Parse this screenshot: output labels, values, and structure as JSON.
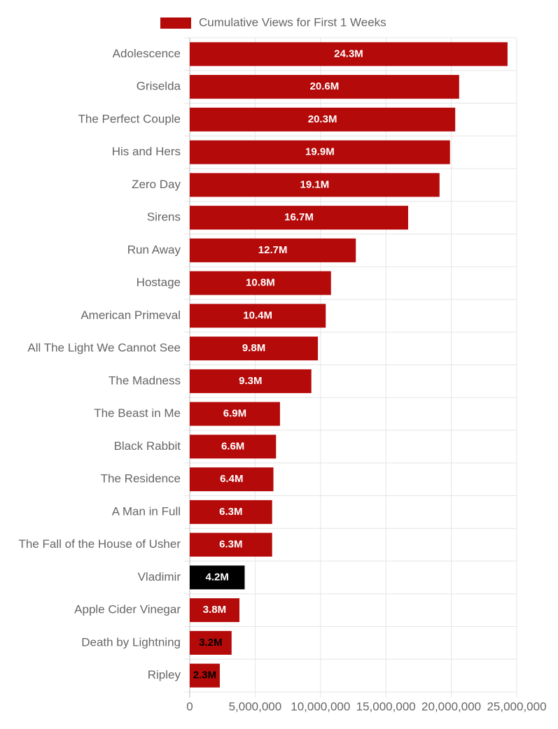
{
  "chart_data": {
    "type": "hbar",
    "categories": [
      "Adolescence",
      "Griselda",
      "The Perfect Couple",
      "His and Hers",
      "Zero Day",
      "Sirens",
      "Run Away",
      "Hostage",
      "American Primeval",
      "All The Light We Cannot See",
      "The Madness",
      "The Beast in Me",
      "Black Rabbit",
      "The Residence",
      "A Man in Full",
      "The Fall of the House of Usher",
      "Vladimir",
      "Apple Cider Vinegar",
      "Death by Lightning",
      "Ripley"
    ],
    "series": [
      {
        "name": "Cumulative Views for First 1 Weeks",
        "color": "#b50a0a",
        "values": [
          24300000,
          20600000,
          20300000,
          19900000,
          19100000,
          16700000,
          12700000,
          10800000,
          10400000,
          9800000,
          9300000,
          6900000,
          6600000,
          6400000,
          6300000,
          6300000,
          4200000,
          3800000,
          3200000,
          2300000
        ],
        "value_labels": [
          "24.3M",
          "20.6M",
          "20.3M",
          "19.9M",
          "19.1M",
          "16.7M",
          "12.7M",
          "10.8M",
          "10.4M",
          "9.8M",
          "9.3M",
          "6.9M",
          "6.6M",
          "6.4M",
          "6.3M",
          "6.3M",
          "4.2M",
          "3.8M",
          "3.2M",
          "2.3M"
        ],
        "bar_colors": [
          "#b50a0a",
          "#b50a0a",
          "#b50a0a",
          "#b50a0a",
          "#b50a0a",
          "#b50a0a",
          "#b50a0a",
          "#b50a0a",
          "#b50a0a",
          "#b50a0a",
          "#b50a0a",
          "#b50a0a",
          "#b50a0a",
          "#b50a0a",
          "#b50a0a",
          "#b50a0a",
          "#000000",
          "#b50a0a",
          "#b50a0a",
          "#b50a0a"
        ]
      }
    ],
    "xlim": [
      0,
      25000000
    ],
    "xticks": [
      0,
      {
        "value": 5000000,
        "label": "5,000,000"
      },
      {
        "value": 10000000,
        "label": "10,000,000"
      },
      {
        "value": 15000000,
        "label": "15,000,000"
      },
      {
        "value": 20000000,
        "label": "20,000,000"
      },
      {
        "value": 25000000,
        "label": "25,000,000"
      }
    ],
    "grid": true
  }
}
